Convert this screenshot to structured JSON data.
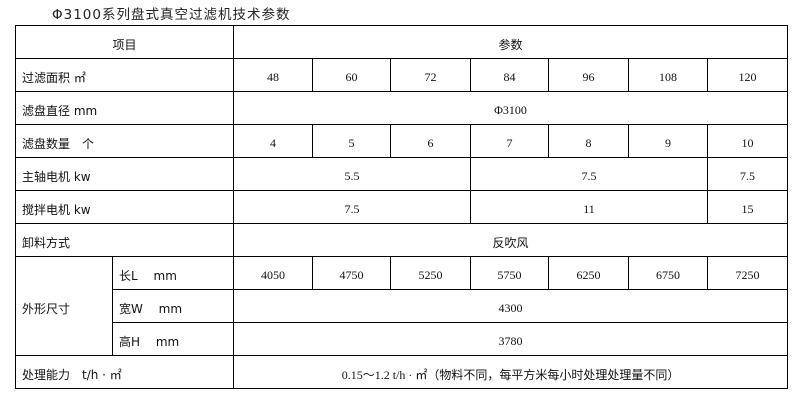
{
  "title": "Φ3100系列盘式真空过滤机技术参数",
  "header": {
    "item": "项目",
    "params": "参数"
  },
  "rows": {
    "area": {
      "label": "过滤面积 ㎡",
      "values": [
        "48",
        "60",
        "72",
        "84",
        "96",
        "108",
        "120"
      ]
    },
    "diameter": {
      "label": "滤盘直径 mm",
      "value": "Φ3100"
    },
    "discs": {
      "label": "滤盘数量　个",
      "values": [
        "4",
        "5",
        "6",
        "7",
        "8",
        "9",
        "10"
      ]
    },
    "main_motor": {
      "label": "主轴电机 kw",
      "values": [
        "5.5",
        "7.5",
        "7.5"
      ]
    },
    "mixer_motor": {
      "label": "搅拌电机 kw",
      "values": [
        "7.5",
        "11",
        "15"
      ]
    },
    "discharge": {
      "label": "卸料方式",
      "value": "反吹风"
    },
    "dimensions": {
      "label": "外形尺寸",
      "length": {
        "label": "长L　 mm",
        "values": [
          "4050",
          "4750",
          "5250",
          "5750",
          "6250",
          "6750",
          "7250"
        ]
      },
      "width": {
        "label": "宽W　 mm",
        "value": "4300"
      },
      "height": {
        "label": "高H　 mm",
        "value": "3780"
      }
    },
    "capacity": {
      "label": "处理能力　t/h · ㎡",
      "value": "0.15～1.2 t/h · ㎡（物料不同，每平方米每小时处理处理量不同）"
    }
  }
}
